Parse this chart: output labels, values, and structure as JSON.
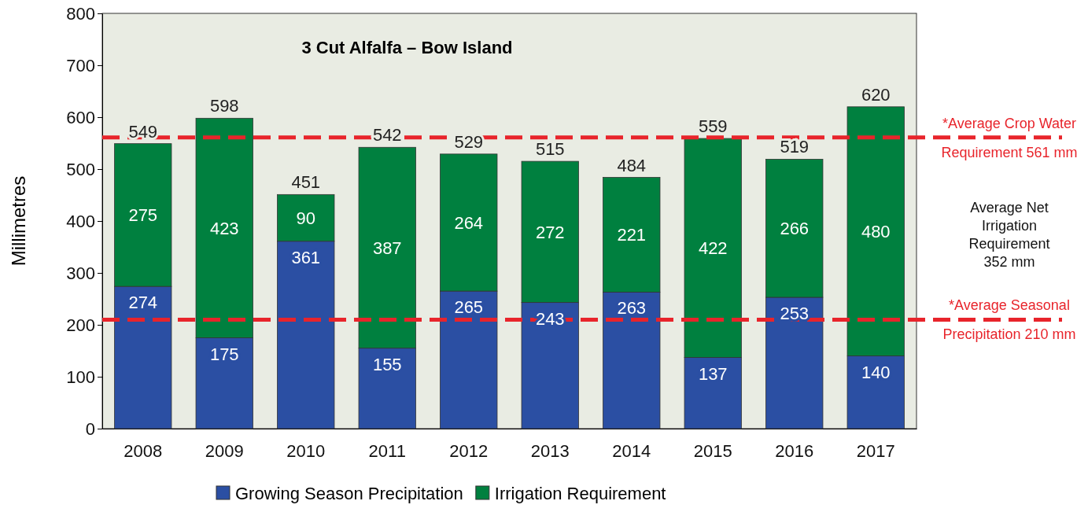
{
  "chart_data": {
    "type": "bar",
    "title": "3 Cut Alfalfa – Bow Island",
    "ylabel": "Millimetres",
    "categories": [
      "2008",
      "2009",
      "2010",
      "2011",
      "2012",
      "2013",
      "2014",
      "2015",
      "2016",
      "2017"
    ],
    "stacked": true,
    "series": [
      {
        "name": "Growing Season Precipitation",
        "color": "#2b4fa3",
        "values": [
          274,
          175,
          361,
          155,
          265,
          243,
          263,
          137,
          253,
          140
        ]
      },
      {
        "name": "Irrigation Requirement",
        "color": "#00803f",
        "values": [
          275,
          423,
          90,
          387,
          264,
          272,
          221,
          422,
          266,
          480
        ]
      }
    ],
    "data_labels": true,
    "totals": [
      "549",
      "598",
      "451",
      "542",
      "529",
      "515",
      "484",
      "559",
      "519",
      "620"
    ],
    "ylim": [
      0,
      800
    ],
    "yticks": [
      0,
      100,
      200,
      300,
      400,
      500,
      600,
      700,
      800
    ],
    "grid": false,
    "legend": "bottom",
    "ref_lines": [
      {
        "axis": "y",
        "value": 561,
        "label": "*Average Crop Water Requirement 561 mm",
        "color": "#e8242b",
        "line_style": "dashed"
      },
      {
        "axis": "y",
        "value": 210,
        "label": "*Average Seasonal Precipitation 210 mm",
        "color": "#e8242b",
        "line_style": "dashed"
      }
    ],
    "annotations": [
      "Average Net Irrigation Requirement 352 mm"
    ]
  }
}
